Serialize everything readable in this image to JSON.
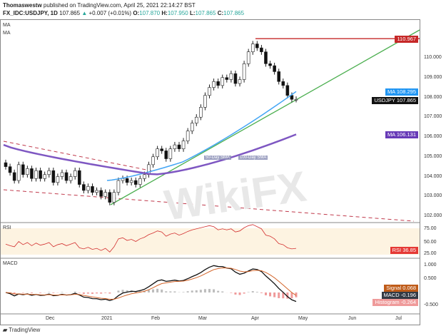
{
  "header": {
    "author": "Thomaswestw",
    "published": "published on TradingView.com, April 25, 2021 22:14:27 BST",
    "symbol": "FX_IDC:USDJPY, 1D",
    "last": "107.865",
    "change": "+0.007 (+0.01%)",
    "o_label": "O:",
    "o": "107.870",
    "h_label": "H:",
    "h": "107.950",
    "l_label": "L:",
    "l": "107.865",
    "c_label": "C:",
    "c": "107.865"
  },
  "pane_labels": {
    "ma1": "MA",
    "ma2": "MA",
    "rsi": "RSI",
    "macd": "MACD"
  },
  "footer": {
    "brand": "TradingView"
  },
  "watermark": "WikiFX",
  "chart_data": {
    "type": "candlestick",
    "x_ticks": [
      "Dec",
      "2021",
      "Feb",
      "Mar",
      "Apr",
      "May",
      "Jun",
      "Jul"
    ],
    "price_ticks": [
      "110.000",
      "109.000",
      "108.000",
      "107.000",
      "106.000",
      "105.000",
      "104.000",
      "103.000",
      "102.000"
    ],
    "price_range": [
      101.7,
      112.2
    ],
    "closes": [
      104.5,
      104.2,
      103.8,
      104.6,
      104.1,
      104.4,
      103.9,
      104.3,
      103.9,
      104.1,
      104.3,
      103.7,
      104.0,
      104.2,
      103.8,
      104.0,
      104.3,
      103.6,
      103.3,
      103.5,
      103.2,
      103.3,
      103.0,
      103.2,
      102.7,
      103.2,
      103.8,
      103.9,
      103.7,
      103.8,
      103.6,
      103.9,
      104.1,
      104.6,
      105.0,
      105.4,
      105.3,
      104.9,
      105.4,
      105.6,
      105.4,
      105.8,
      106.3,
      106.7,
      107.0,
      107.5,
      108.1,
      108.5,
      108.8,
      108.6,
      109.0,
      108.9,
      109.2,
      108.7,
      108.9,
      109.7,
      110.3,
      110.7,
      110.5,
      110.3,
      109.7,
      109.6,
      109.3,
      108.8,
      108.6,
      108.1,
      107.9,
      107.9
    ],
    "sma50": {
      "label": "50-Day SMA",
      "start": 103.8,
      "end": 108.295,
      "value": "108.295"
    },
    "sma100": {
      "label": "100-Day SMA",
      "start": 105.6,
      "low": 104.1,
      "end": 106.131,
      "value": "106.131"
    },
    "resistance": {
      "value": "110.967"
    },
    "last_label": {
      "name": "USDJPY",
      "value": "107.865"
    },
    "ma_tag": "MA",
    "rsi": {
      "ticks": [
        "75.00",
        "50.00",
        "25.00"
      ],
      "value": "36.85",
      "label": "RSI",
      "values": [
        45,
        42,
        40,
        50,
        44,
        48,
        42,
        47,
        43,
        45,
        48,
        40,
        44,
        46,
        42,
        45,
        48,
        38,
        36,
        39,
        35,
        37,
        33,
        37,
        30,
        40,
        55,
        57,
        52,
        54,
        50,
        55,
        58,
        63,
        66,
        70,
        68,
        60,
        64,
        66,
        62,
        65,
        69,
        72,
        74,
        76,
        78,
        80,
        78,
        72,
        74,
        72,
        74,
        68,
        70,
        76,
        80,
        82,
        78,
        74,
        62,
        60,
        55,
        46,
        44,
        38,
        36,
        37
      ]
    },
    "macd": {
      "ticks": [
        "1.000",
        "0.500",
        "-0.500"
      ],
      "signal": "0.068",
      "macd": "-0.196",
      "histogram": "-0.264",
      "signal_label": "Signal",
      "macd_label": "MACD",
      "hist_label": "Histogram"
    }
  }
}
